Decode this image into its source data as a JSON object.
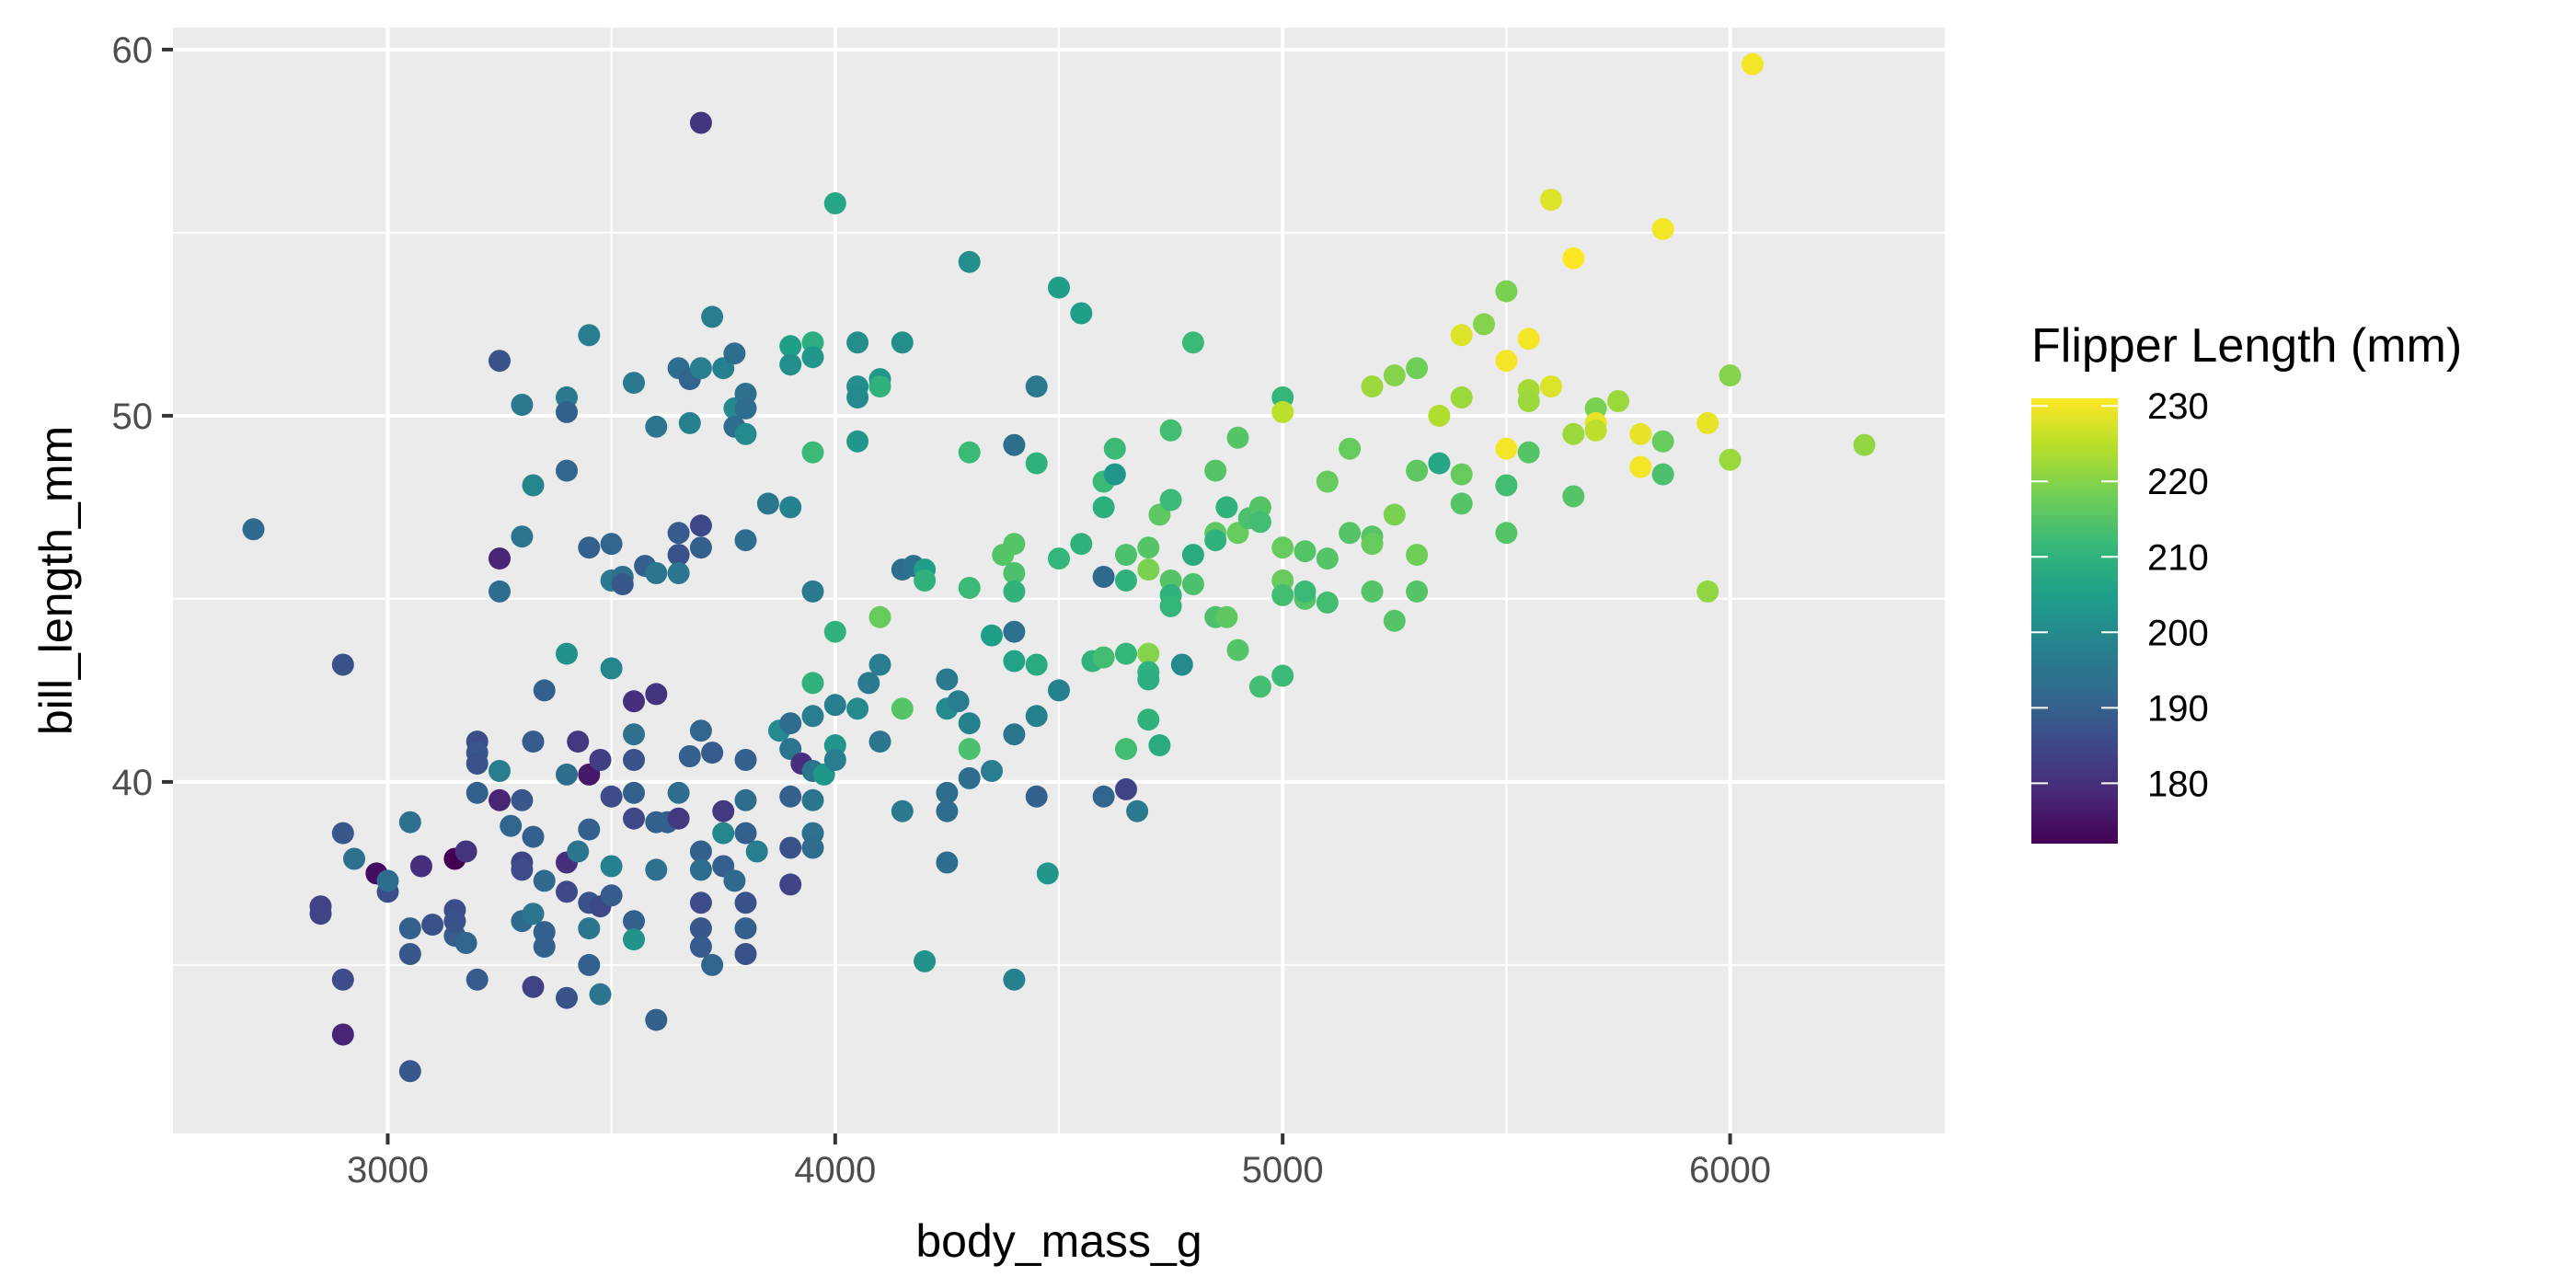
{
  "chart_data": {
    "type": "scatter",
    "title": "",
    "xlabel": "body_mass_g",
    "ylabel": "bill_length_mm",
    "xlim": [
      2520,
      6480
    ],
    "ylim": [
      30.4,
      60.6
    ],
    "x_ticks": [
      3000,
      4000,
      5000,
      6000
    ],
    "x_tick_labels": [
      "3000",
      "4000",
      "5000",
      "6000"
    ],
    "y_ticks": [
      40,
      50,
      60
    ],
    "y_tick_labels": [
      "40",
      "50",
      "60"
    ],
    "grid": true,
    "color_scale": {
      "name": "viridis",
      "variable": "flipper_length_mm",
      "title": "Flipper Length (mm)",
      "range": [
        172,
        231
      ],
      "breaks": [
        180,
        190,
        200,
        210,
        220,
        230
      ],
      "break_labels": [
        "180",
        "190",
        "200",
        "210",
        "220",
        "230"
      ],
      "stops": [
        "#440154",
        "#482878",
        "#3e4989",
        "#31688e",
        "#26828e",
        "#1f9e89",
        "#35b779",
        "#6ece58",
        "#b5de2b",
        "#fde725"
      ]
    },
    "legend_position": "right",
    "points": [
      [
        2700,
        46.9,
        192
      ],
      [
        2850,
        36.4,
        184
      ],
      [
        2850,
        36.6,
        184
      ],
      [
        2900,
        43.2,
        187
      ],
      [
        2900,
        38.6,
        188
      ],
      [
        2900,
        34.6,
        186
      ],
      [
        2900,
        33.1,
        178
      ],
      [
        2925,
        37.9,
        194
      ],
      [
        2975,
        37.5,
        174
      ],
      [
        3000,
        37.0,
        186
      ],
      [
        3000,
        37.3,
        193
      ],
      [
        3050,
        36.0,
        190
      ],
      [
        3050,
        35.3,
        188
      ],
      [
        3050,
        38.9,
        194
      ],
      [
        3050,
        32.1,
        188
      ],
      [
        3075,
        37.7,
        180
      ],
      [
        3100,
        36.1,
        187
      ],
      [
        3150,
        36.5,
        186
      ],
      [
        3150,
        35.8,
        189
      ],
      [
        3150,
        36.2,
        187
      ],
      [
        3150,
        37.9,
        172
      ],
      [
        3175,
        38.1,
        181
      ],
      [
        3175,
        35.6,
        191
      ],
      [
        3200,
        41.1,
        186
      ],
      [
        3200,
        40.8,
        188
      ],
      [
        3200,
        40.5,
        187
      ],
      [
        3200,
        39.7,
        190
      ],
      [
        3200,
        34.6,
        189
      ],
      [
        3250,
        51.5,
        187
      ],
      [
        3250,
        46.1,
        178
      ],
      [
        3250,
        45.2,
        193
      ],
      [
        3250,
        40.3,
        197
      ],
      [
        3250,
        39.5,
        178
      ],
      [
        3275,
        38.8,
        191
      ],
      [
        3300,
        50.3,
        196
      ],
      [
        3300,
        46.7,
        195
      ],
      [
        3300,
        39.5,
        188
      ],
      [
        3300,
        37.8,
        184
      ],
      [
        3300,
        37.6,
        186
      ],
      [
        3300,
        36.2,
        192
      ],
      [
        3325,
        48.1,
        199
      ],
      [
        3325,
        41.1,
        189
      ],
      [
        3325,
        38.5,
        190
      ],
      [
        3325,
        36.4,
        195
      ],
      [
        3325,
        34.4,
        184
      ],
      [
        3350,
        42.5,
        190
      ],
      [
        3350,
        37.3,
        192
      ],
      [
        3350,
        35.9,
        190
      ],
      [
        3350,
        35.5,
        190
      ],
      [
        3400,
        50.5,
        196
      ],
      [
        3400,
        50.1,
        190
      ],
      [
        3400,
        48.5,
        191
      ],
      [
        3400,
        43.5,
        202
      ],
      [
        3400,
        40.2,
        193
      ],
      [
        3400,
        37.8,
        180
      ],
      [
        3400,
        37.0,
        185
      ],
      [
        3400,
        34.1,
        187
      ],
      [
        3425,
        41.1,
        182
      ],
      [
        3425,
        38.1,
        195
      ],
      [
        3450,
        52.2,
        197
      ],
      [
        3450,
        46.4,
        190
      ],
      [
        3450,
        40.2,
        176
      ],
      [
        3450,
        38.7,
        190
      ],
      [
        3450,
        36.0,
        195
      ],
      [
        3450,
        35.0,
        190
      ],
      [
        3450,
        36.7,
        187
      ],
      [
        3475,
        40.6,
        183
      ],
      [
        3475,
        36.6,
        185
      ],
      [
        3475,
        34.2,
        195
      ],
      [
        3500,
        46.5,
        191
      ],
      [
        3500,
        45.5,
        196
      ],
      [
        3500,
        43.1,
        199
      ],
      [
        3500,
        39.6,
        186
      ],
      [
        3500,
        37.7,
        198
      ],
      [
        3500,
        36.9,
        189
      ],
      [
        3525,
        45.6,
        194
      ],
      [
        3525,
        45.4,
        188
      ],
      [
        3550,
        50.9,
        196
      ],
      [
        3550,
        42.2,
        180
      ],
      [
        3550,
        41.3,
        194
      ],
      [
        3550,
        40.6,
        187
      ],
      [
        3550,
        39.7,
        190
      ],
      [
        3550,
        39.0,
        185
      ],
      [
        3550,
        36.2,
        190
      ],
      [
        3550,
        35.7,
        202
      ],
      [
        3575,
        45.9,
        190
      ],
      [
        3600,
        49.7,
        195
      ],
      [
        3600,
        45.7,
        195
      ],
      [
        3600,
        42.4,
        181
      ],
      [
        3600,
        38.9,
        190
      ],
      [
        3600,
        37.6,
        194
      ],
      [
        3600,
        33.5,
        190
      ],
      [
        3625,
        38.9,
        190
      ],
      [
        3650,
        51.3,
        193
      ],
      [
        3650,
        46.8,
        189
      ],
      [
        3650,
        46.2,
        187
      ],
      [
        3650,
        45.7,
        195
      ],
      [
        3650,
        39.0,
        182
      ],
      [
        3650,
        39.7,
        193
      ],
      [
        3675,
        51.0,
        191
      ],
      [
        3675,
        49.8,
        198
      ],
      [
        3675,
        40.7,
        190
      ],
      [
        3700,
        58.0,
        181
      ],
      [
        3700,
        51.3,
        197
      ],
      [
        3700,
        47.0,
        185
      ],
      [
        3700,
        46.4,
        190
      ],
      [
        3700,
        41.4,
        191
      ],
      [
        3700,
        38.1,
        190
      ],
      [
        3700,
        37.6,
        193
      ],
      [
        3700,
        36.7,
        186
      ],
      [
        3700,
        36.0,
        188
      ],
      [
        3700,
        35.5,
        189
      ],
      [
        3725,
        52.7,
        197
      ],
      [
        3725,
        40.8,
        189
      ],
      [
        3725,
        35.0,
        191
      ],
      [
        3750,
        51.3,
        198
      ],
      [
        3750,
        39.2,
        182
      ],
      [
        3750,
        38.6,
        199
      ],
      [
        3750,
        37.7,
        190
      ],
      [
        3775,
        51.7,
        193
      ],
      [
        3775,
        50.2,
        200
      ],
      [
        3775,
        49.7,
        193
      ],
      [
        3775,
        37.3,
        192
      ],
      [
        3800,
        50.6,
        194
      ],
      [
        3800,
        50.2,
        193
      ],
      [
        3800,
        49.5,
        200
      ],
      [
        3800,
        46.6,
        193
      ],
      [
        3800,
        40.6,
        190
      ],
      [
        3800,
        39.5,
        193
      ],
      [
        3800,
        38.6,
        190
      ],
      [
        3800,
        36.7,
        187
      ],
      [
        3800,
        36.0,
        190
      ],
      [
        3800,
        35.3,
        187
      ],
      [
        3825,
        38.1,
        197
      ],
      [
        3850,
        47.6,
        195
      ],
      [
        3875,
        41.4,
        200
      ],
      [
        3900,
        51.9,
        205
      ],
      [
        3900,
        51.4,
        201
      ],
      [
        3900,
        47.5,
        198
      ],
      [
        3900,
        41.6,
        193
      ],
      [
        3900,
        40.9,
        195
      ],
      [
        3900,
        39.6,
        190
      ],
      [
        3900,
        38.2,
        187
      ],
      [
        3900,
        37.2,
        184
      ],
      [
        3925,
        40.5,
        180
      ],
      [
        3950,
        52.0,
        209
      ],
      [
        3950,
        51.6,
        203
      ],
      [
        3950,
        49.0,
        212
      ],
      [
        3950,
        45.2,
        196
      ],
      [
        3950,
        42.7,
        210
      ],
      [
        3950,
        41.8,
        197
      ],
      [
        3950,
        40.3,
        195
      ],
      [
        3950,
        39.5,
        195
      ],
      [
        3950,
        38.6,
        194
      ],
      [
        3950,
        38.2,
        193
      ],
      [
        3975,
        40.2,
        203
      ],
      [
        4000,
        55.8,
        207
      ],
      [
        4000,
        44.1,
        210
      ],
      [
        4000,
        42.1,
        197
      ],
      [
        4000,
        41.0,
        203
      ],
      [
        4000,
        40.6,
        197
      ],
      [
        4050,
        52.0,
        201
      ],
      [
        4050,
        50.8,
        201
      ],
      [
        4050,
        50.5,
        200
      ],
      [
        4050,
        49.3,
        203
      ],
      [
        4050,
        42.0,
        200
      ],
      [
        4075,
        42.7,
        196
      ],
      [
        4100,
        51.0,
        203
      ],
      [
        4100,
        50.8,
        210
      ],
      [
        4100,
        44.5,
        217
      ],
      [
        4100,
        43.2,
        197
      ],
      [
        4100,
        41.1,
        195
      ],
      [
        4150,
        52.0,
        201
      ],
      [
        4150,
        45.8,
        193
      ],
      [
        4150,
        42.0,
        215
      ],
      [
        4150,
        39.2,
        196
      ],
      [
        4175,
        45.9,
        194
      ],
      [
        4200,
        45.8,
        205
      ],
      [
        4200,
        45.5,
        210
      ],
      [
        4200,
        35.1,
        202
      ],
      [
        4250,
        42.8,
        196
      ],
      [
        4250,
        42.0,
        200
      ],
      [
        4250,
        39.7,
        193
      ],
      [
        4250,
        39.2,
        193
      ],
      [
        4250,
        37.8,
        193
      ],
      [
        4275,
        42.2,
        197
      ],
      [
        4300,
        54.2,
        201
      ],
      [
        4300,
        49.0,
        212
      ],
      [
        4300,
        45.3,
        212
      ],
      [
        4300,
        41.6,
        198
      ],
      [
        4300,
        40.9,
        214
      ],
      [
        4300,
        40.1,
        193
      ],
      [
        4350,
        44.0,
        205
      ],
      [
        4350,
        40.3,
        197
      ],
      [
        4375,
        46.2,
        215
      ],
      [
        4400,
        49.2,
        193
      ],
      [
        4400,
        46.5,
        215
      ],
      [
        4400,
        45.7,
        214
      ],
      [
        4400,
        45.2,
        210
      ],
      [
        4400,
        44.1,
        194
      ],
      [
        4400,
        43.3,
        206
      ],
      [
        4400,
        41.3,
        195
      ],
      [
        4400,
        34.6,
        198
      ],
      [
        4450,
        50.8,
        196
      ],
      [
        4450,
        48.7,
        210
      ],
      [
        4450,
        43.2,
        208
      ],
      [
        4450,
        41.8,
        198
      ],
      [
        4450,
        39.6,
        190
      ],
      [
        4475,
        37.5,
        203
      ],
      [
        4500,
        53.5,
        205
      ],
      [
        4500,
        46.1,
        211
      ],
      [
        4500,
        42.5,
        198
      ],
      [
        4550,
        52.8,
        205
      ],
      [
        4550,
        46.5,
        210
      ],
      [
        4575,
        43.3,
        210
      ],
      [
        4600,
        48.2,
        212
      ],
      [
        4600,
        47.5,
        209
      ],
      [
        4600,
        45.6,
        192
      ],
      [
        4600,
        43.4,
        213
      ],
      [
        4600,
        39.6,
        191
      ],
      [
        4625,
        49.1,
        212
      ],
      [
        4625,
        48.4,
        203
      ],
      [
        4650,
        46.2,
        214
      ],
      [
        4650,
        45.5,
        210
      ],
      [
        4650,
        43.5,
        211
      ],
      [
        4650,
        40.9,
        213
      ],
      [
        4650,
        39.8,
        184
      ],
      [
        4675,
        39.2,
        196
      ],
      [
        4700,
        46.4,
        215
      ],
      [
        4700,
        45.8,
        219
      ],
      [
        4700,
        43.5,
        220
      ],
      [
        4700,
        43.0,
        210
      ],
      [
        4700,
        42.8,
        209
      ],
      [
        4700,
        41.7,
        210
      ],
      [
        4725,
        47.3,
        216
      ],
      [
        4725,
        41.0,
        208
      ],
      [
        4750,
        49.6,
        213
      ],
      [
        4750,
        47.7,
        212
      ],
      [
        4750,
        45.5,
        215
      ],
      [
        4750,
        45.1,
        210
      ],
      [
        4750,
        44.8,
        211
      ],
      [
        4775,
        43.2,
        200
      ],
      [
        4800,
        52.0,
        212
      ],
      [
        4800,
        46.2,
        208
      ],
      [
        4800,
        45.4,
        214
      ],
      [
        4850,
        48.5,
        215
      ],
      [
        4850,
        46.8,
        216
      ],
      [
        4850,
        46.6,
        210
      ],
      [
        4850,
        44.5,
        214
      ],
      [
        4875,
        47.5,
        210
      ],
      [
        4875,
        44.5,
        216
      ],
      [
        4900,
        49.4,
        215
      ],
      [
        4900,
        46.8,
        217
      ],
      [
        4900,
        43.6,
        215
      ],
      [
        4925,
        47.2,
        214
      ],
      [
        4950,
        47.5,
        215
      ],
      [
        4950,
        47.1,
        213
      ],
      [
        4950,
        42.6,
        213
      ],
      [
        5000,
        50.5,
        211
      ],
      [
        5000,
        50.1,
        225
      ],
      [
        5000,
        46.4,
        217
      ],
      [
        5000,
        45.5,
        217
      ],
      [
        5000,
        45.1,
        213
      ],
      [
        5000,
        42.9,
        212
      ],
      [
        5050,
        46.3,
        215
      ],
      [
        5050,
        45.0,
        215
      ],
      [
        5050,
        45.2,
        212
      ],
      [
        5100,
        48.2,
        217
      ],
      [
        5100,
        46.1,
        215
      ],
      [
        5100,
        44.9,
        213
      ],
      [
        5150,
        49.1,
        217
      ],
      [
        5150,
        46.8,
        215
      ],
      [
        5200,
        50.8,
        222
      ],
      [
        5200,
        46.7,
        215
      ],
      [
        5200,
        46.5,
        217
      ],
      [
        5200,
        45.2,
        215
      ],
      [
        5250,
        51.1,
        220
      ],
      [
        5250,
        47.3,
        219
      ],
      [
        5250,
        44.4,
        215
      ],
      [
        5300,
        51.3,
        218
      ],
      [
        5300,
        48.5,
        216
      ],
      [
        5300,
        46.2,
        218
      ],
      [
        5300,
        45.2,
        215
      ],
      [
        5350,
        50.0,
        224
      ],
      [
        5350,
        48.7,
        207
      ],
      [
        5400,
        52.2,
        228
      ],
      [
        5400,
        50.5,
        222
      ],
      [
        5400,
        48.4,
        217
      ],
      [
        5400,
        47.6,
        215
      ],
      [
        5450,
        52.5,
        220
      ],
      [
        5500,
        53.4,
        219
      ],
      [
        5500,
        51.5,
        230
      ],
      [
        5500,
        49.1,
        230
      ],
      [
        5500,
        48.1,
        213
      ],
      [
        5500,
        46.8,
        215
      ],
      [
        5550,
        52.1,
        230
      ],
      [
        5550,
        50.7,
        223
      ],
      [
        5550,
        50.4,
        222
      ],
      [
        5550,
        49.0,
        215
      ],
      [
        5600,
        55.9,
        228
      ],
      [
        5600,
        50.8,
        228
      ],
      [
        5650,
        54.3,
        231
      ],
      [
        5650,
        49.5,
        222
      ],
      [
        5650,
        47.8,
        215
      ],
      [
        5700,
        50.2,
        219
      ],
      [
        5700,
        49.8,
        229
      ],
      [
        5700,
        49.6,
        225
      ],
      [
        5750,
        50.4,
        222
      ],
      [
        5800,
        49.5,
        229
      ],
      [
        5800,
        48.6,
        230
      ],
      [
        5850,
        55.1,
        230
      ],
      [
        5850,
        49.3,
        217
      ],
      [
        5850,
        48.4,
        214
      ],
      [
        5950,
        49.8,
        229
      ],
      [
        5950,
        45.2,
        221
      ],
      [
        6000,
        51.1,
        220
      ],
      [
        6000,
        48.8,
        222
      ],
      [
        6050,
        59.6,
        230
      ],
      [
        6300,
        49.2,
        221
      ]
    ]
  }
}
